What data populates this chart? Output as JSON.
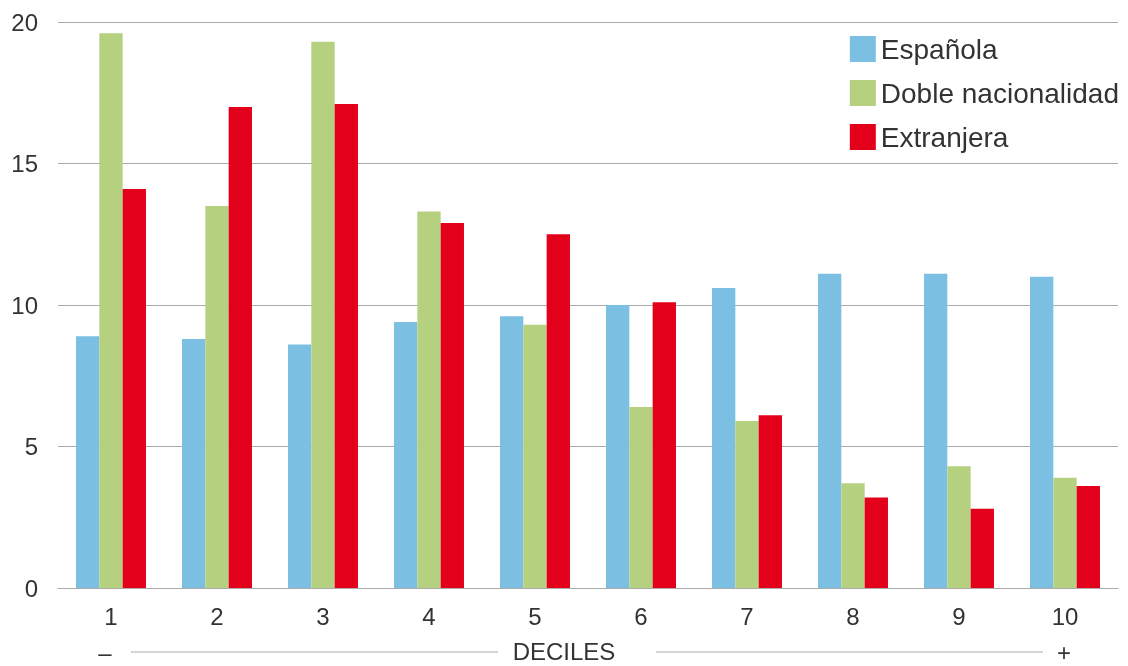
{
  "chart_data": {
    "type": "bar",
    "xlabel": "DECILES",
    "categories": [
      "1",
      "2",
      "3",
      "4",
      "5",
      "6",
      "7",
      "8",
      "9",
      "10"
    ],
    "series": [
      {
        "name": "Española",
        "color": "#7bbfe3",
        "values": [
          8.9,
          8.8,
          8.6,
          9.4,
          9.6,
          10.0,
          10.6,
          11.1,
          11.1,
          11.0
        ]
      },
      {
        "name": "Doble nacionalidad",
        "color": "#b5d17f",
        "values": [
          19.6,
          13.5,
          19.3,
          13.3,
          9.3,
          6.4,
          5.9,
          3.7,
          4.3,
          3.9
        ]
      },
      {
        "name": "Extranjera",
        "color": "#e2001a",
        "values": [
          14.1,
          17.0,
          17.1,
          12.9,
          12.5,
          10.1,
          6.1,
          3.2,
          2.8,
          3.6
        ]
      }
    ],
    "ylim": [
      0,
      20
    ],
    "yticks": [
      0,
      5,
      10,
      15,
      20
    ],
    "grid": "y",
    "legend": "top right",
    "annotations": [
      "–",
      "+"
    ]
  }
}
